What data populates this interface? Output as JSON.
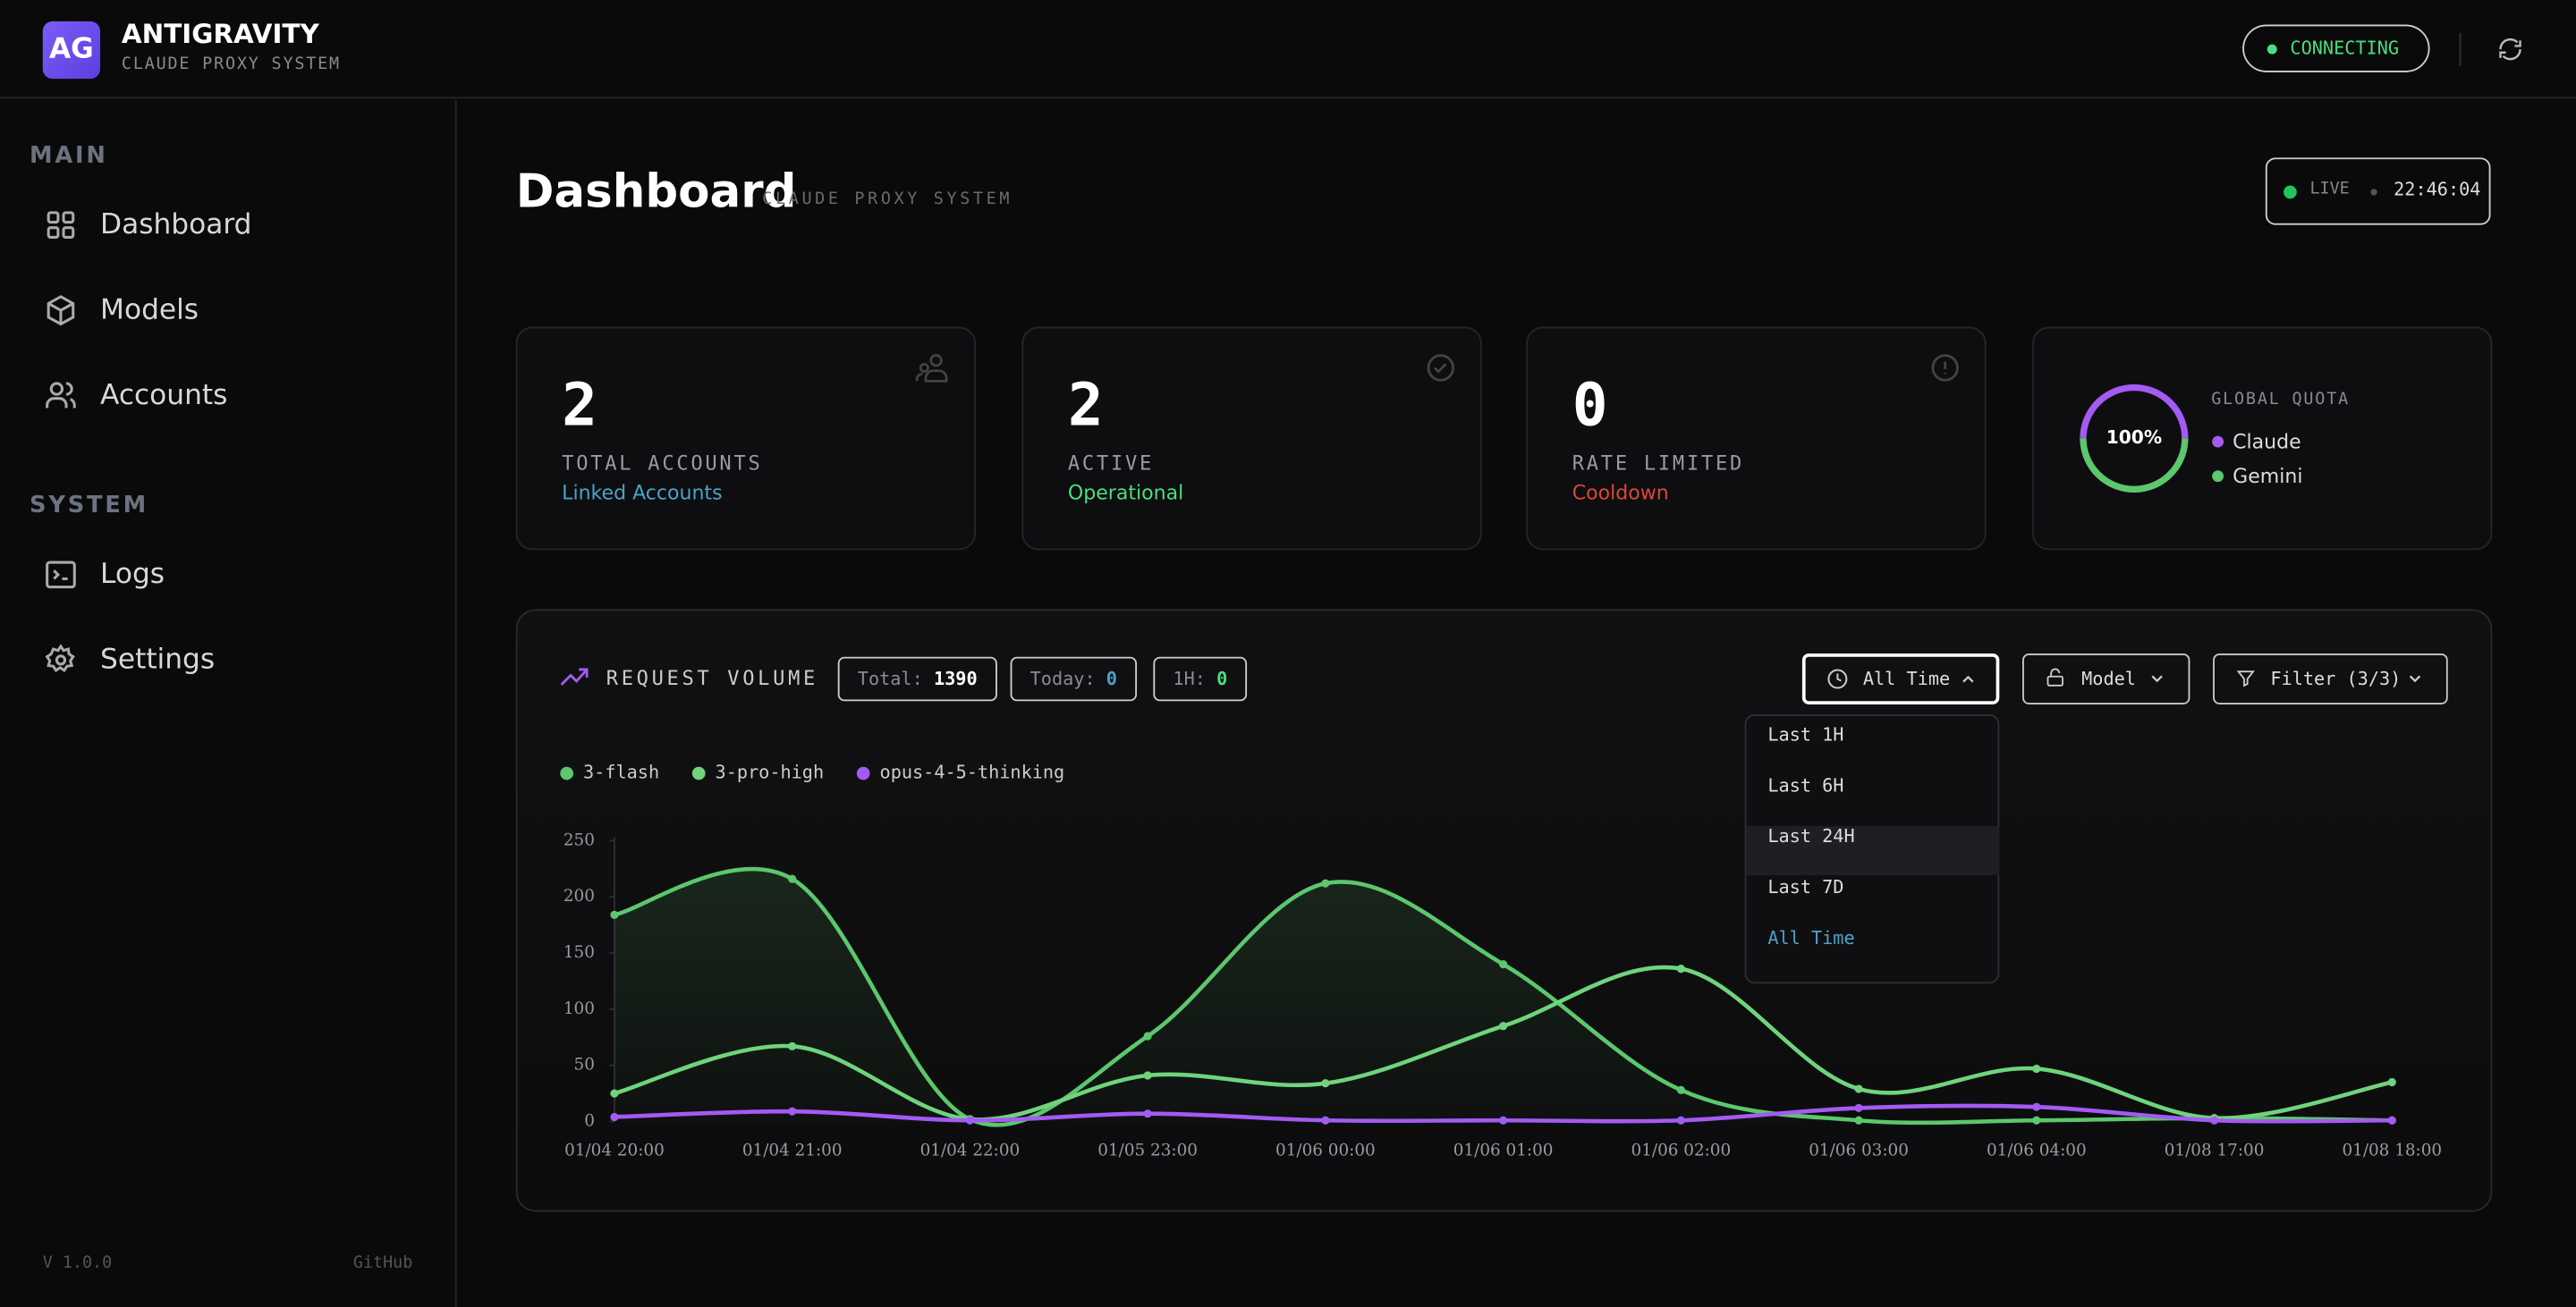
{
  "header": {
    "logo": "AG",
    "title": "ANTIGRAVITY",
    "subtitle": "CLAUDE PROXY SYSTEM",
    "status": "CONNECTING"
  },
  "sidebar": {
    "sections": [
      {
        "title": "MAIN",
        "items": [
          "Dashboard",
          "Models",
          "Accounts"
        ]
      },
      {
        "title": "SYSTEM",
        "items": [
          "Logs",
          "Settings"
        ]
      }
    ],
    "version": "V 1.0.0",
    "link": "GitHub"
  },
  "page": {
    "title": "Dashboard",
    "subtitle": "CLAUDE PROXY SYSTEM",
    "live": "LIVE",
    "time": "22:46:04"
  },
  "stats": [
    {
      "value": 2,
      "label": "TOTAL ACCOUNTS",
      "note": "Linked Accounts"
    },
    {
      "value": 2,
      "label": "ACTIVE",
      "note": "Operational"
    },
    {
      "value": 0,
      "label": "RATE LIMITED",
      "note": "Cooldown"
    }
  ],
  "quota": {
    "percent": "100%",
    "title": "GLOBAL QUOTA",
    "items": [
      "Claude",
      "Gemini"
    ]
  },
  "request_volume": {
    "title": "REQUEST VOLUME",
    "counters": [
      {
        "label": "Total:",
        "value": 1390
      },
      {
        "label": "Today:",
        "value": 0
      },
      {
        "label": "1H:",
        "value": 0
      }
    ],
    "controls": [
      "All Time",
      "Model",
      "Filter (3/3)"
    ],
    "range_options": [
      "Last 1H",
      "Last 6H",
      "Last 24H",
      "Last 7D",
      "All Time"
    ]
  },
  "chart_data": {
    "type": "line",
    "categories": [
      "01/04 20:00",
      "01/04 21:00",
      "01/04 22:00",
      "01/05 23:00",
      "01/06 00:00",
      "01/06 01:00",
      "01/06 02:00",
      "01/06 03:00",
      "01/06 04:00",
      "01/08 17:00",
      "01/08 18:00"
    ],
    "series": [
      {
        "name": "3-flash",
        "color": "#5cc76c",
        "values": [
          184,
          216,
          2,
          76,
          212,
          140,
          28,
          1,
          1,
          3,
          1
        ]
      },
      {
        "name": "3-pro-high",
        "color": "#6fd47c",
        "values": [
          25,
          67,
          2,
          41,
          34,
          85,
          136,
          29,
          47,
          3,
          35
        ]
      },
      {
        "name": "opus-4-5-thinking",
        "color": "#a35bf2",
        "values": [
          4,
          9,
          1,
          7,
          1,
          1,
          1,
          12,
          13,
          1,
          1
        ]
      }
    ],
    "ylim": [
      0,
      250
    ],
    "yticks": [
      0,
      50,
      100,
      150,
      200,
      250
    ]
  }
}
